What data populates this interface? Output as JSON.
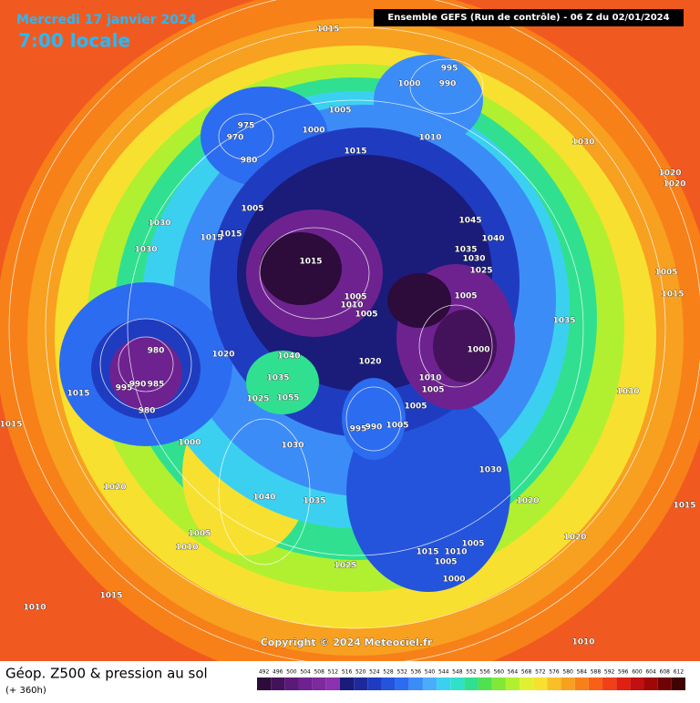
{
  "header": {
    "date": "Mercredi 17 janvier 2024",
    "time": "7:00 locale",
    "run": "Ensemble GEFS  (Run de contrôle)  -  06 Z du 02/01/2024"
  },
  "map": {
    "copyright": "Copyright © 2024 Meteociel.fr",
    "isobar_labels": [
      "1015",
      "995",
      "1000",
      "990",
      "1005",
      "975",
      "970",
      "1000",
      "1010",
      "1030",
      "980",
      "1015",
      "1020",
      "1020",
      "1005",
      "1030",
      "1045",
      "1015",
      "1015",
      "1040",
      "1035",
      "1030",
      "1030",
      "1025",
      "1015",
      "1005",
      "1005",
      "1005",
      "1015",
      "1010",
      "1005",
      "1035",
      "980",
      "1000",
      "1020",
      "1040",
      "1020",
      "1035",
      "1010",
      "995",
      "990",
      "985",
      "1005",
      "1030",
      "1015",
      "1055",
      "1025",
      "1005",
      "980",
      "1015",
      "995",
      "990",
      "1005",
      "1000",
      "1030",
      "1030",
      "1020",
      "1040",
      "1035",
      "1020",
      "1015",
      "1005",
      "1020",
      "1010",
      "1005",
      "1015",
      "1010",
      "1005",
      "1025",
      "1000",
      "1015",
      "1010",
      "1010"
    ]
  },
  "footer": {
    "title": "Géop. Z500 & pression au sol",
    "lead": "(+ 360h)"
  },
  "legend": {
    "values": [
      492,
      496,
      500,
      504,
      508,
      512,
      516,
      520,
      524,
      528,
      532,
      536,
      540,
      544,
      548,
      552,
      556,
      560,
      564,
      568,
      572,
      576,
      580,
      584,
      588,
      592,
      596,
      600,
      604,
      608,
      612
    ],
    "colors": [
      "#2d0b3a",
      "#44125a",
      "#5a1a78",
      "#6e2290",
      "#7c2a9e",
      "#8a32b0",
      "#1b1b7a",
      "#1e2a9c",
      "#1f3cc0",
      "#2454dc",
      "#2c6cf0",
      "#3c8cf8",
      "#4aacfc",
      "#3cd0f0",
      "#30e0c8",
      "#30e090",
      "#50e050",
      "#80e838",
      "#b0f030",
      "#e0f030",
      "#f8e030",
      "#f8c028",
      "#f8a020",
      "#f88018",
      "#f86018",
      "#f04018",
      "#e02010",
      "#c01010",
      "#a00808",
      "#700404",
      "#400202"
    ]
  }
}
